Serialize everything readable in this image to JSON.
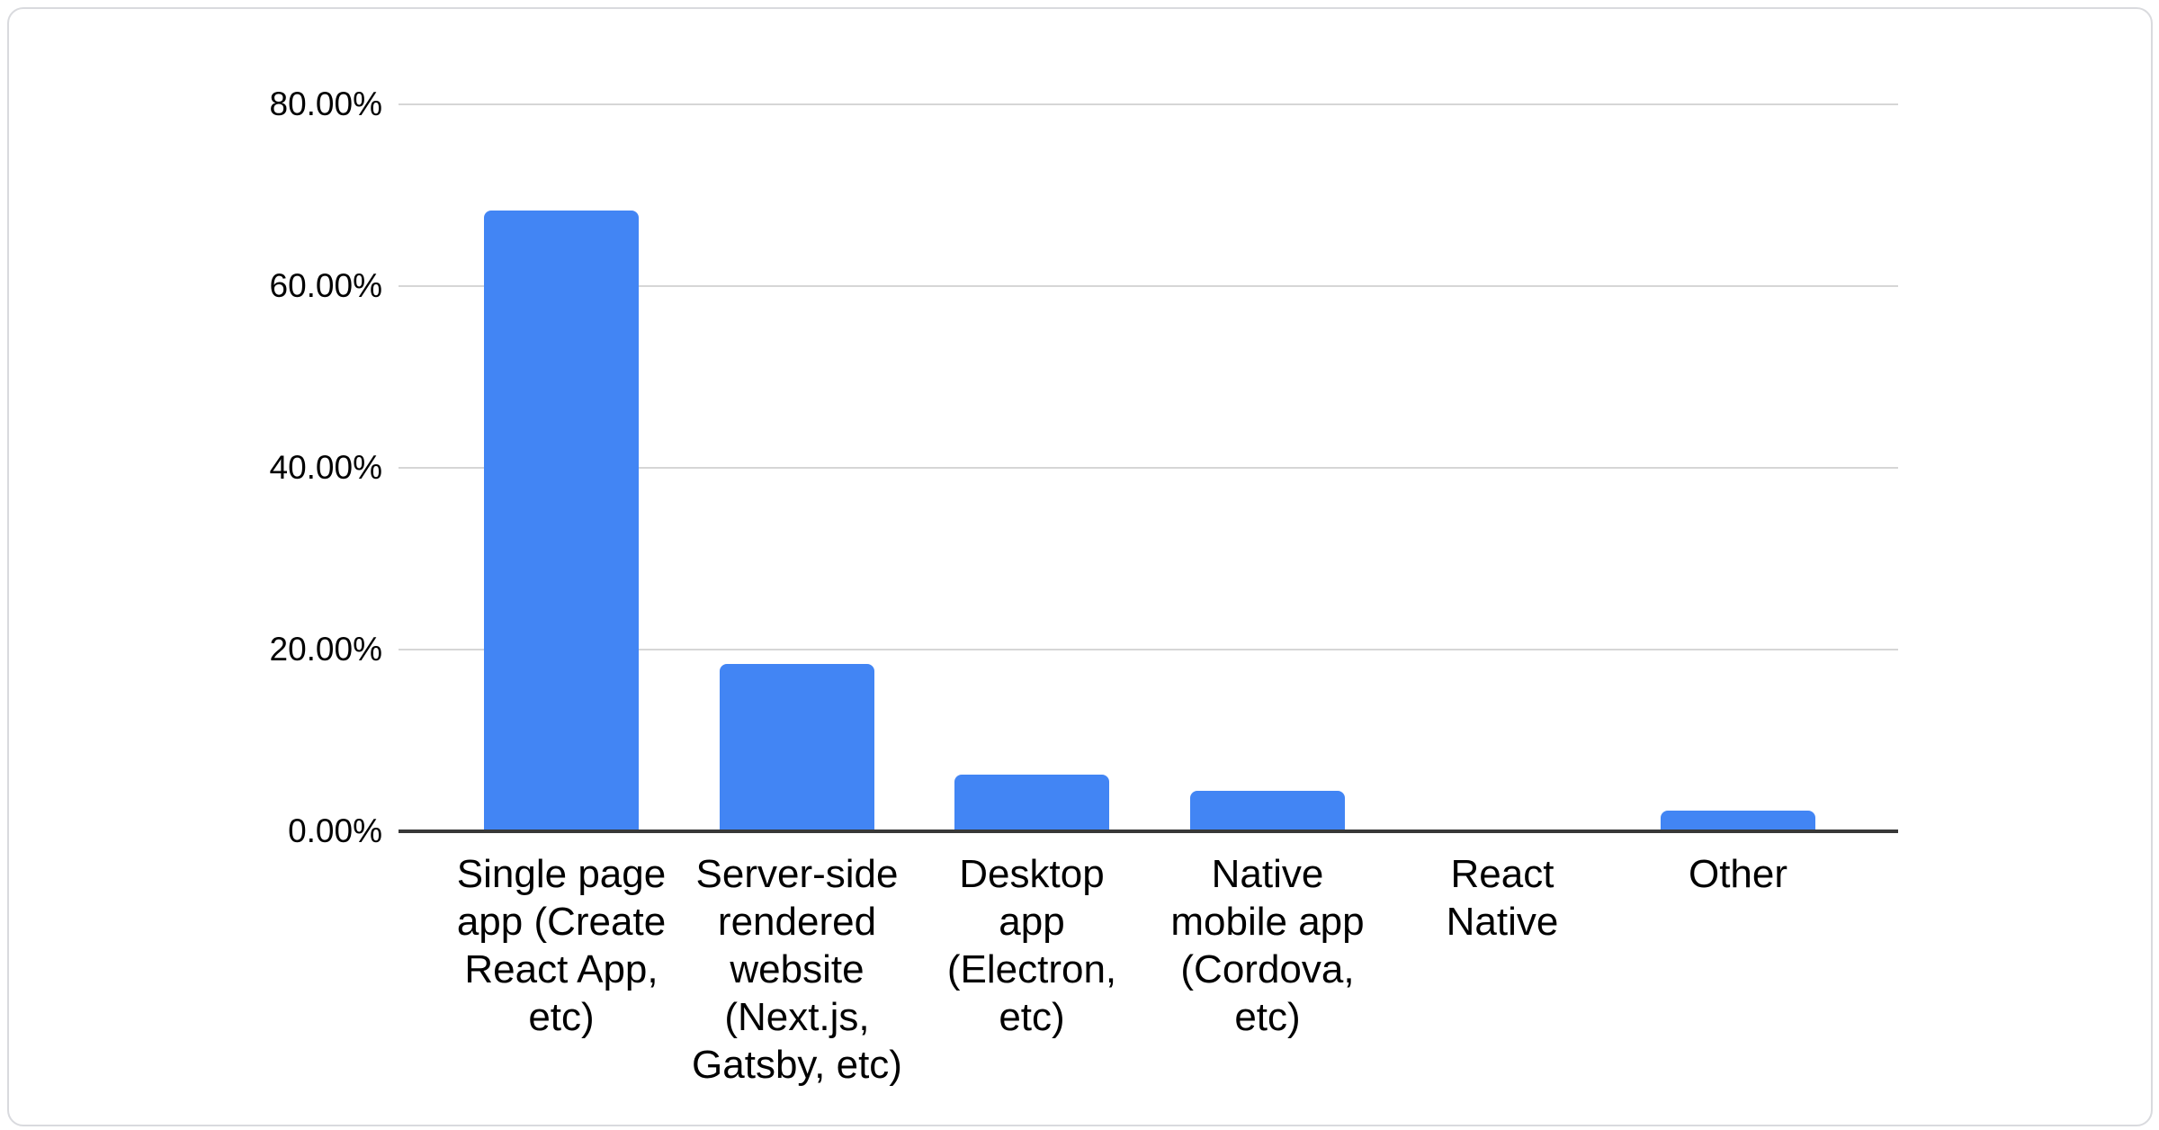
{
  "chart_data": {
    "type": "bar",
    "title": "",
    "xlabel": "",
    "ylabel": "",
    "legend": "none",
    "grid": "horizontal",
    "ylim": [
      0,
      80
    ],
    "categories": [
      "Single page app (Create React App, etc)",
      "Server-side rendered website (Next.js, Gatsby, etc)",
      "Desktop app (Electron, etc)",
      "Native mobile app (Cordova, etc)",
      "React Native",
      "Other"
    ],
    "category_display_lines": [
      [
        "Single page",
        "app (Create",
        "React App,",
        "etc)"
      ],
      [
        "Server-side",
        "rendered",
        "website",
        "(Next.js,",
        "Gatsby, etc)"
      ],
      [
        "Desktop",
        "app",
        "(Electron,",
        "etc)"
      ],
      [
        "Native",
        "mobile app",
        "(Cordova,",
        "etc)"
      ],
      [
        "React",
        "Native"
      ],
      [
        "Other"
      ]
    ],
    "values": [
      68.3,
      18.4,
      6.2,
      4.5,
      0,
      2.3
    ],
    "value_unit": "%",
    "y_ticks": [
      {
        "value": 0,
        "label": "0.00%"
      },
      {
        "value": 20,
        "label": "20.00%"
      },
      {
        "value": 40,
        "label": "40.00%"
      },
      {
        "value": 60,
        "label": "60.00%"
      },
      {
        "value": 80,
        "label": "80.00%"
      }
    ],
    "colors": {
      "bar": "#4285f4",
      "axis_line": "#383838",
      "gridline": "#d6d6d6",
      "text": "#000000",
      "card_border": "#d9dade",
      "background": "#ffffff"
    }
  }
}
